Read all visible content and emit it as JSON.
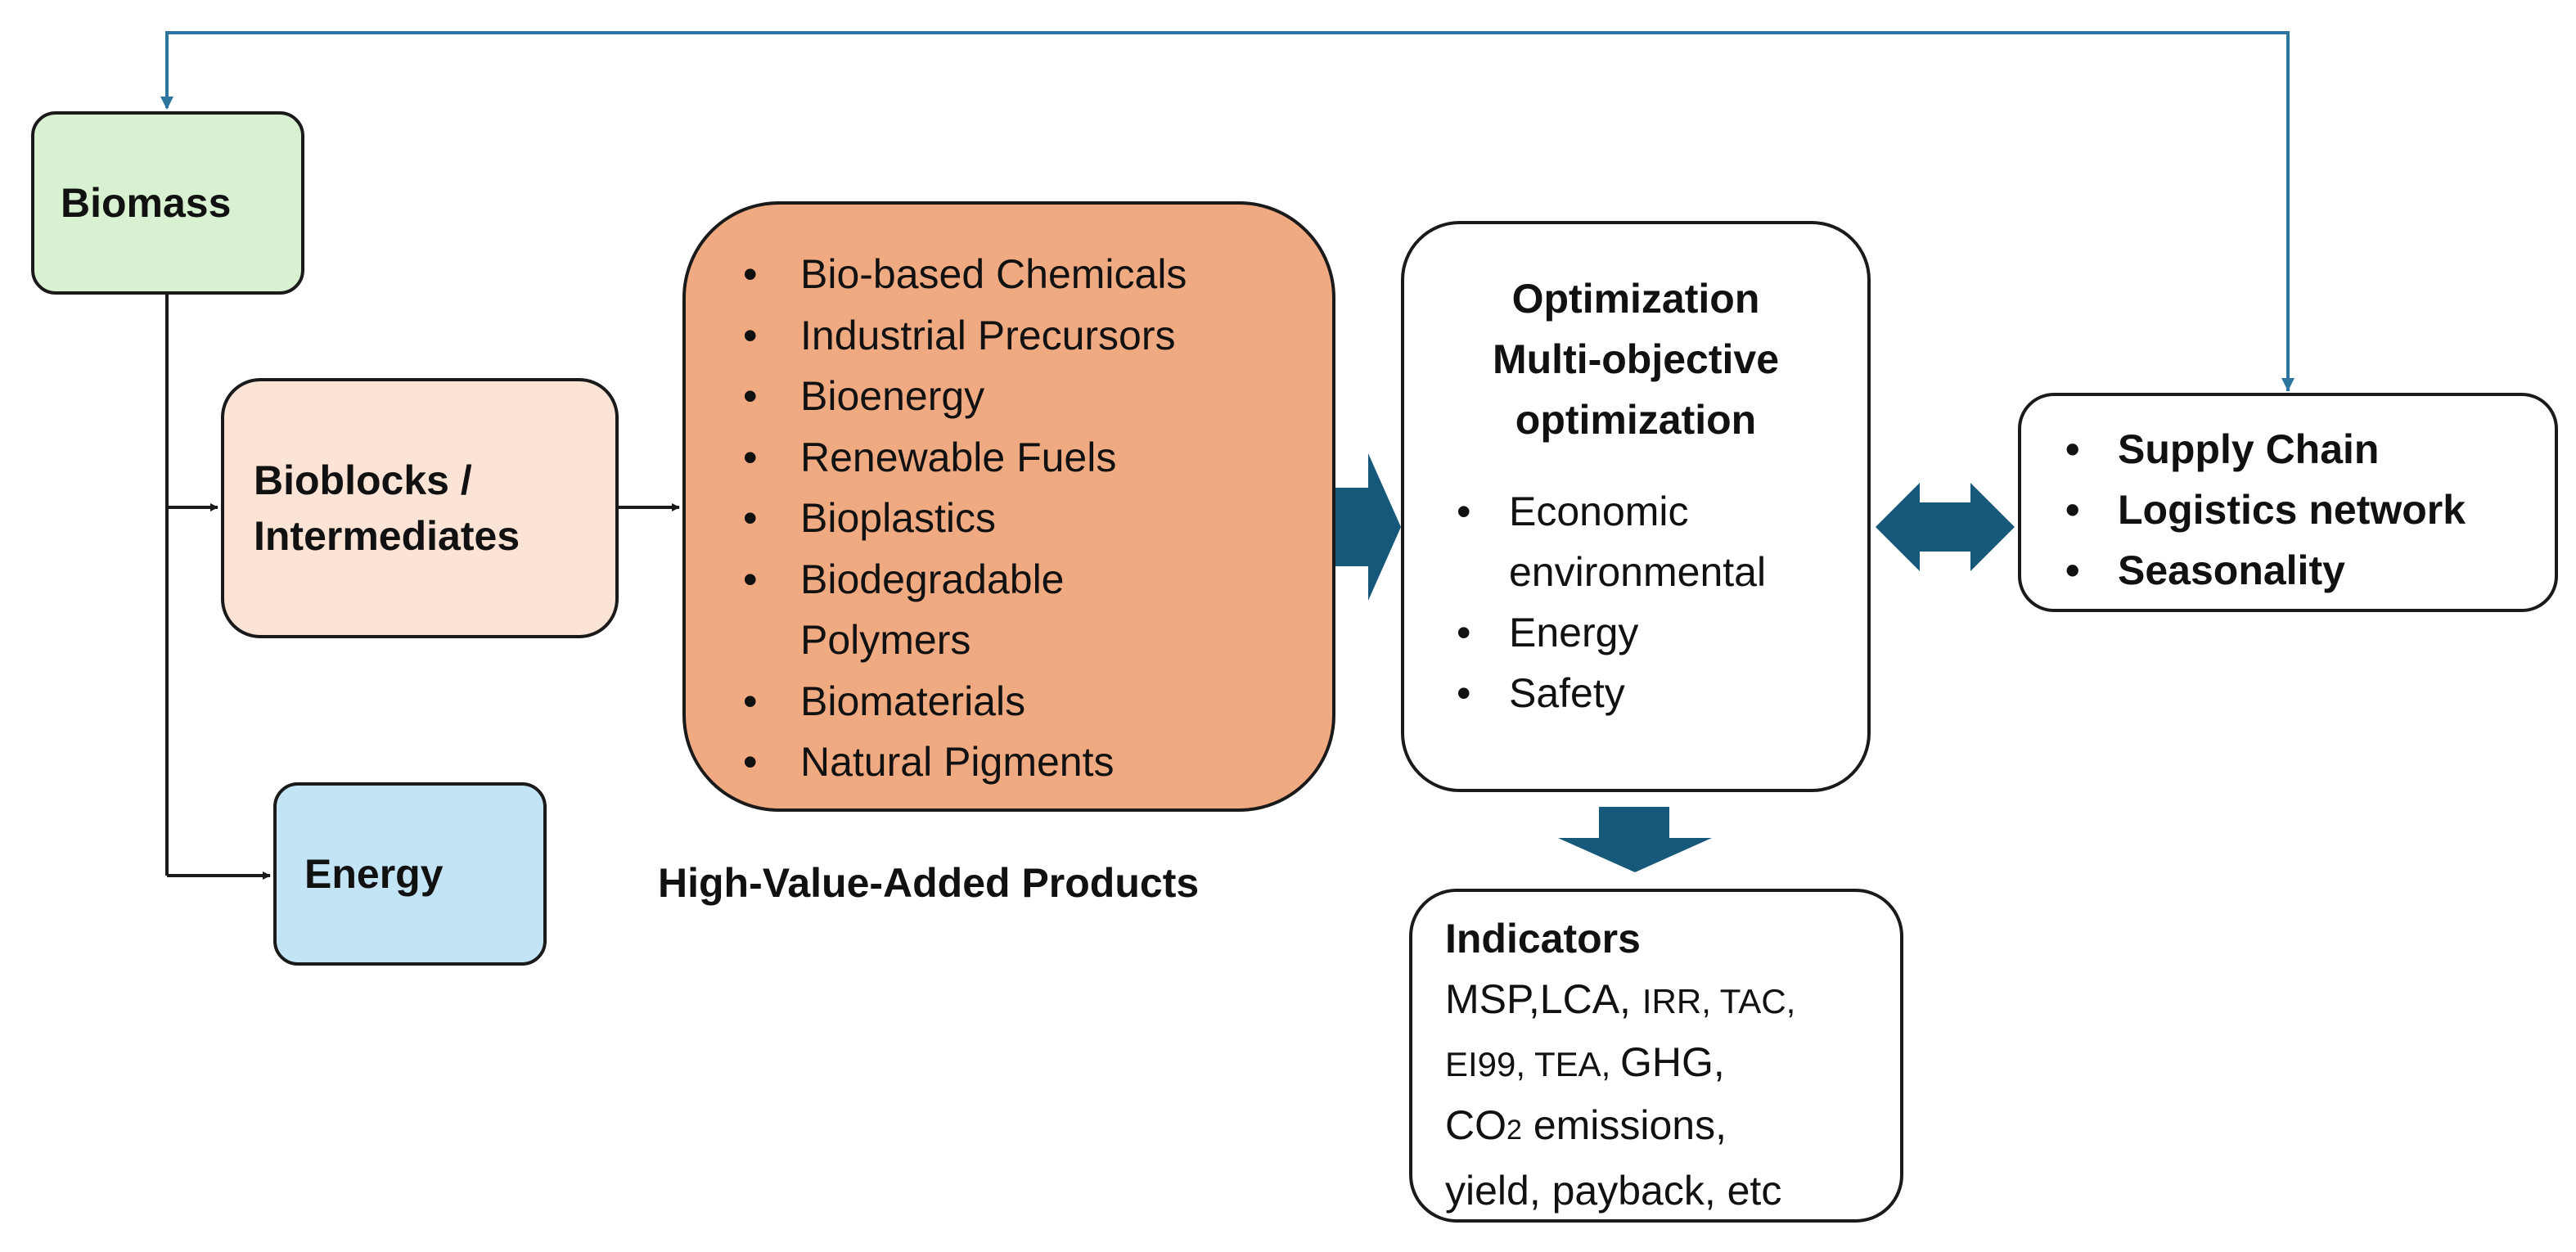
{
  "colors": {
    "biomass_fill": "#d8f1d0",
    "bioblocks_fill": "#fbe3d6",
    "energy_fill": "#c3e4f4",
    "products_fill": "#f0aa82",
    "big_arrow": "#16587a",
    "feedback_line": "#2e75a0",
    "connector": "#1a1a1a"
  },
  "biomass": {
    "label": "Biomass"
  },
  "bioblocks": {
    "line1": "Bioblocks /",
    "line2": "Intermediates"
  },
  "energy": {
    "label": "Energy"
  },
  "products": {
    "items": [
      "Bio-based Chemicals",
      "Industrial Precursors",
      "Bioenergy",
      "Renewable Fuels",
      "Bioplastics",
      "Biodegradable",
      "Polymers",
      "Biomaterials",
      "Natural Pigments"
    ],
    "caption": "High-Value-Added Products"
  },
  "optimization": {
    "title_line1": "Optimization",
    "title_line2": "Multi-objective",
    "title_line3": "optimization",
    "items": [
      "Economic",
      "environmental",
      "Energy",
      "Safety"
    ]
  },
  "supply": {
    "items": [
      "Supply Chain",
      "Logistics network",
      "Seasonality"
    ]
  },
  "indicators": {
    "title": "Indicators",
    "line1_a": "MSP,LCA, ",
    "line1_b": "IRR, TAC,",
    "line2_a": "EI99, TEA, ",
    "line2_b": "GHG,",
    "line3_a": "CO",
    "line3_sub": "2",
    "line3_b": " emissions,",
    "line4": "yield, payback, etc"
  },
  "bullet_char": "•"
}
